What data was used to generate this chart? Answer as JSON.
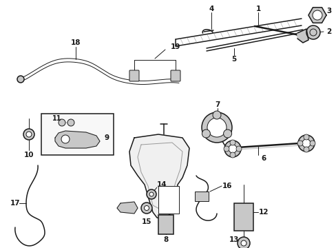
{
  "background_color": "#ffffff",
  "line_color": "#1a1a1a",
  "figsize": [
    4.89,
    3.6
  ],
  "dpi": 100,
  "label_fs": 7.5,
  "lw_thin": 0.7,
  "lw_med": 1.1,
  "lw_thick": 1.8,
  "gray_light": "#c8c8c8",
  "gray_mid": "#999999",
  "gray_dark": "#555555"
}
